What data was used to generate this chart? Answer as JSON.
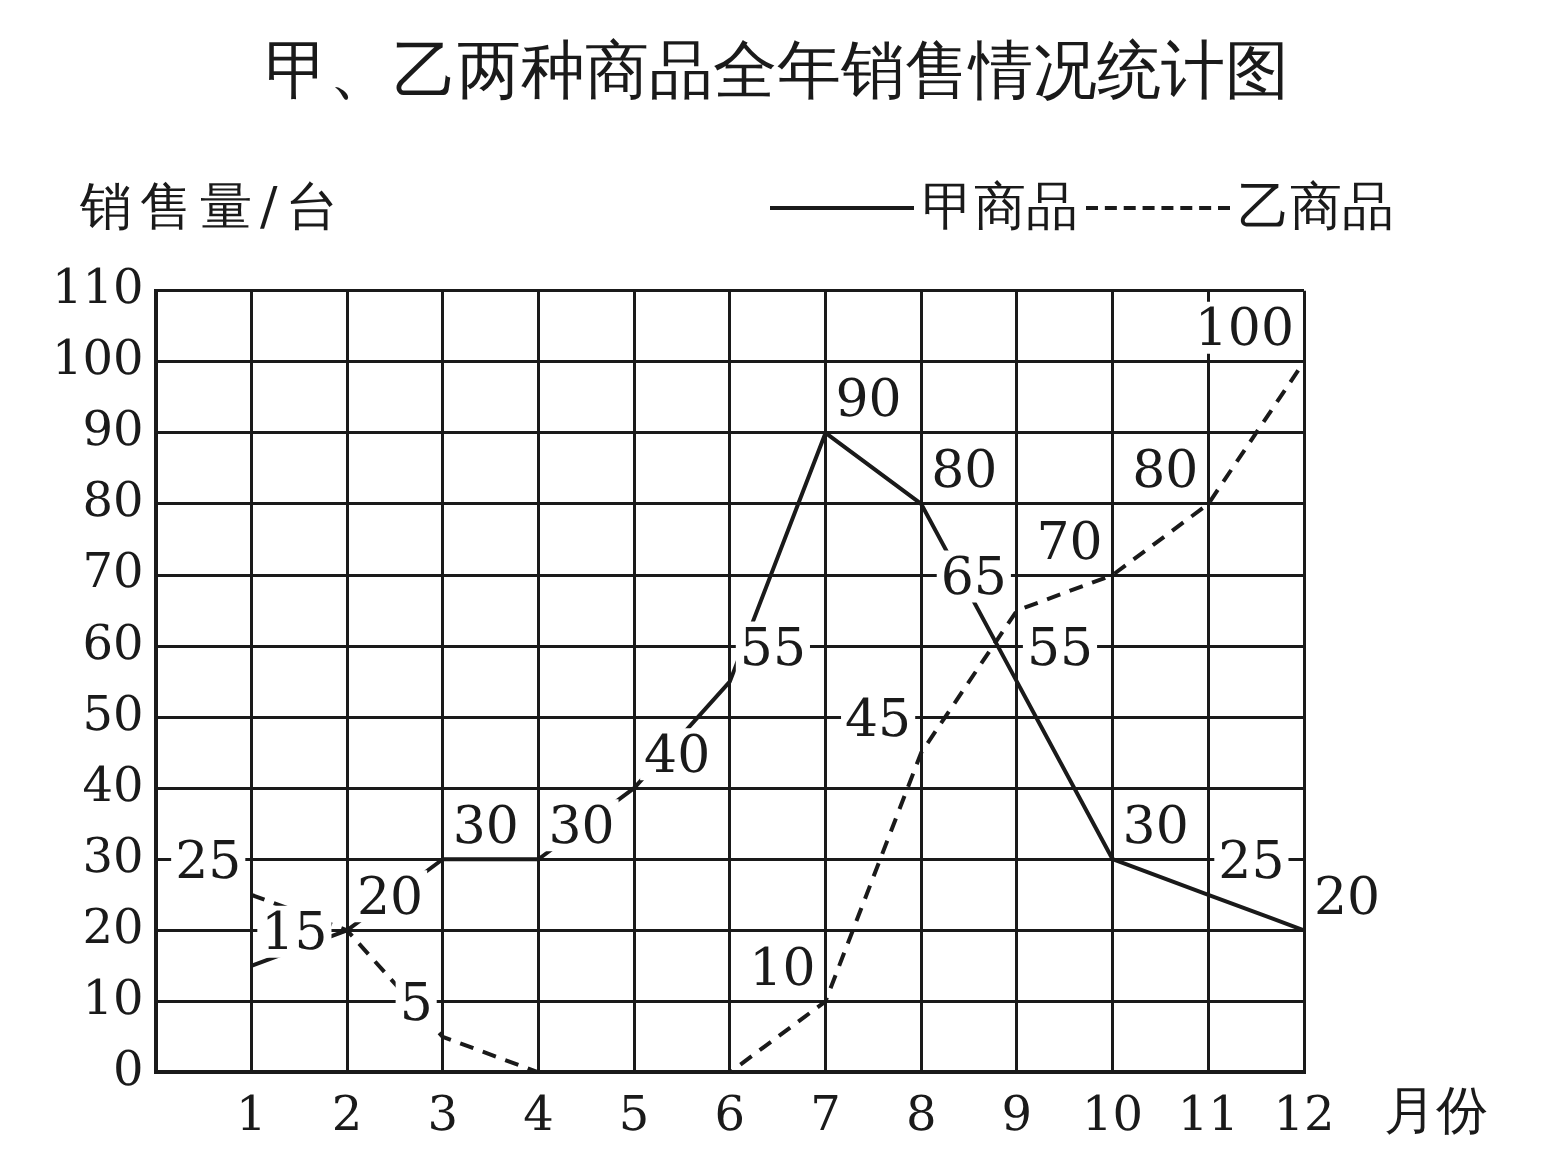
{
  "chart_data": {
    "type": "line",
    "title": "甲、乙两种商品全年销售情况统计图",
    "ylabel": "销售量/台",
    "xlabel": "月份",
    "x": [
      1,
      2,
      3,
      4,
      5,
      6,
      7,
      8,
      9,
      10,
      11,
      12
    ],
    "xlim": [
      0,
      12
    ],
    "xticks": [
      1,
      2,
      3,
      4,
      5,
      6,
      7,
      8,
      9,
      10,
      11,
      12
    ],
    "ylim": [
      0,
      110
    ],
    "yticks": [
      0,
      10,
      20,
      30,
      40,
      50,
      60,
      70,
      80,
      90,
      100,
      110
    ],
    "grid": true,
    "legend": "top right",
    "marker": "none",
    "series": [
      {
        "name": "甲商品",
        "color": "#1a1a1a",
        "line_style": "solid",
        "values": [
          15,
          20,
          30,
          30,
          40,
          55,
          90,
          80,
          55,
          30,
          25,
          20
        ],
        "value_labels": [
          "15",
          "20",
          "30",
          "30",
          "40",
          "55",
          "90",
          "80",
          "55",
          "30",
          "25",
          "20"
        ]
      },
      {
        "name": "乙商品",
        "color": "#1a1a1a",
        "line_style": "dashed",
        "values": [
          25,
          20,
          5,
          0,
          0,
          0,
          10,
          45,
          65,
          70,
          80,
          100
        ],
        "value_labels": [
          "25",
          null,
          "5",
          null,
          null,
          null,
          "10",
          "45",
          "65",
          "70",
          "80",
          "100"
        ]
      }
    ]
  }
}
